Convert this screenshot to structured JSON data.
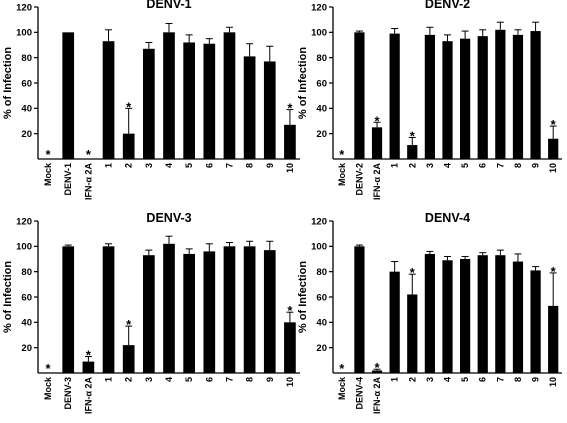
{
  "chart_data": [
    {
      "type": "bar",
      "title": "DENV-1",
      "ylabel": "% of Infection",
      "xlabel": "",
      "ylim": [
        0,
        120
      ],
      "yticks": [
        20,
        40,
        60,
        80,
        100,
        120
      ],
      "categories": [
        "Mock",
        "DENV-1",
        "IFN-α 2A",
        "1",
        "2",
        "3",
        "4",
        "5",
        "6",
        "7",
        "8",
        "9",
        "10"
      ],
      "values": [
        0,
        100,
        0,
        93,
        20,
        87,
        100,
        92,
        91,
        100,
        81,
        77,
        27
      ],
      "errors": [
        0,
        0,
        0,
        9,
        20,
        5,
        7,
        6,
        4,
        4,
        10,
        12,
        12
      ],
      "significant": [
        true,
        false,
        true,
        false,
        true,
        false,
        false,
        false,
        false,
        false,
        false,
        false,
        true
      ],
      "marker": "*"
    },
    {
      "type": "bar",
      "title": "DENV-2",
      "ylabel": "% of Infection",
      "xlabel": "",
      "ylim": [
        0,
        120
      ],
      "yticks": [
        20,
        40,
        60,
        80,
        100,
        120
      ],
      "categories": [
        "Mock",
        "DENV-2",
        "IFN-α 2A",
        "1",
        "2",
        "3",
        "4",
        "5",
        "6",
        "7",
        "8",
        "9",
        "10"
      ],
      "values": [
        0,
        100,
        25,
        99,
        11,
        98,
        93,
        95,
        97,
        102,
        98,
        101,
        16
      ],
      "errors": [
        0,
        1,
        4,
        4,
        6,
        6,
        5,
        6,
        5,
        6,
        4,
        7,
        10
      ],
      "significant": [
        true,
        false,
        true,
        false,
        true,
        false,
        false,
        false,
        false,
        false,
        false,
        false,
        true
      ],
      "marker": "*"
    },
    {
      "type": "bar",
      "title": "DENV-3",
      "ylabel": "% of Infection",
      "xlabel": "",
      "ylim": [
        0,
        120
      ],
      "yticks": [
        20,
        40,
        60,
        80,
        100,
        120
      ],
      "categories": [
        "Mock",
        "DENV-3",
        "IFN-α 2A",
        "1",
        "2",
        "3",
        "4",
        "5",
        "6",
        "7",
        "8",
        "9",
        "10"
      ],
      "values": [
        0,
        100,
        9,
        100,
        22,
        93,
        102,
        94,
        96,
        100,
        100,
        97,
        40
      ],
      "errors": [
        0,
        1,
        4,
        2,
        15,
        4,
        6,
        4,
        6,
        3,
        4,
        7,
        8
      ],
      "significant": [
        true,
        false,
        true,
        false,
        true,
        false,
        false,
        false,
        false,
        false,
        false,
        false,
        true
      ],
      "marker": "*"
    },
    {
      "type": "bar",
      "title": "DENV-4",
      "ylabel": "% of Infection",
      "xlabel": "",
      "ylim": [
        0,
        120
      ],
      "yticks": [
        20,
        40,
        60,
        80,
        100,
        120
      ],
      "categories": [
        "Mock",
        "DENV-4",
        "IFN-α 2A",
        "1",
        "2",
        "3",
        "4",
        "5",
        "6",
        "7",
        "8",
        "9",
        "10"
      ],
      "values": [
        0,
        100,
        2,
        80,
        62,
        94,
        89,
        90,
        93,
        93,
        88,
        81,
        53
      ],
      "errors": [
        0,
        1,
        1,
        8,
        16,
        2,
        3,
        2,
        2,
        4,
        6,
        3,
        26
      ],
      "significant": [
        true,
        false,
        true,
        false,
        true,
        false,
        false,
        false,
        false,
        false,
        false,
        false,
        true
      ],
      "marker": "*"
    }
  ]
}
